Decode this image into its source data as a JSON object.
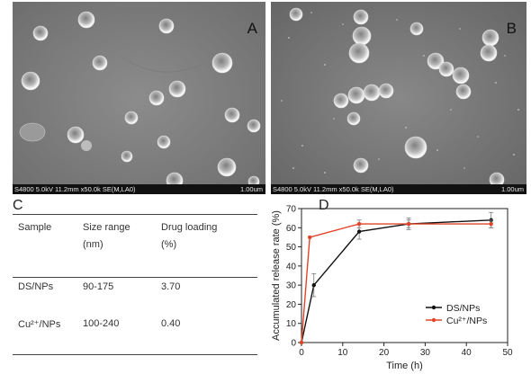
{
  "panel_a": {
    "letter": "A",
    "footer_meta": "S4800 5.0kV 11.2mm x50.0k SE(M,LA0)",
    "footer_scale": "1.00um"
  },
  "panel_b": {
    "letter": "B",
    "footer_meta": "S4800 5.0kV 11.2mm x50.0k SE(M,LA0)",
    "footer_scale": "1.00um"
  },
  "table": {
    "letter": "C",
    "headers": {
      "sample": "Sample",
      "size_line1": "Size range",
      "size_line2": "(nm)",
      "loading_line1": "Drug loading",
      "loading_line2": "(%)"
    },
    "rows": [
      {
        "sample": "DS/NPs",
        "size": "90-175",
        "loading": "3.70"
      },
      {
        "sample": "Cu²⁺/NPs",
        "size": "100-240",
        "loading": "0.40"
      }
    ]
  },
  "chart_data": {
    "letter": "D",
    "type": "line",
    "xlabel": "Time (h)",
    "ylabel": "Accumulated release rate (%)",
    "xlim": [
      0,
      50
    ],
    "ylim": [
      0,
      70
    ],
    "xticks": [
      0,
      10,
      20,
      30,
      40,
      50
    ],
    "yticks": [
      0,
      10,
      20,
      30,
      40,
      50,
      60,
      70
    ],
    "legend_position": "bottom-right",
    "series": [
      {
        "name": "DS/NPs",
        "color": "#111111",
        "x": [
          0,
          3,
          14,
          26,
          46
        ],
        "y": [
          0,
          30,
          58,
          62,
          64
        ],
        "err": [
          0,
          6,
          4,
          3,
          4
        ]
      },
      {
        "name": "Cu²⁺/NPs",
        "color": "#e0452a",
        "x": [
          0,
          2,
          14,
          26,
          46
        ],
        "y": [
          0,
          55,
          62,
          62,
          62
        ],
        "err": [
          0,
          0,
          2,
          2,
          2
        ]
      }
    ]
  }
}
